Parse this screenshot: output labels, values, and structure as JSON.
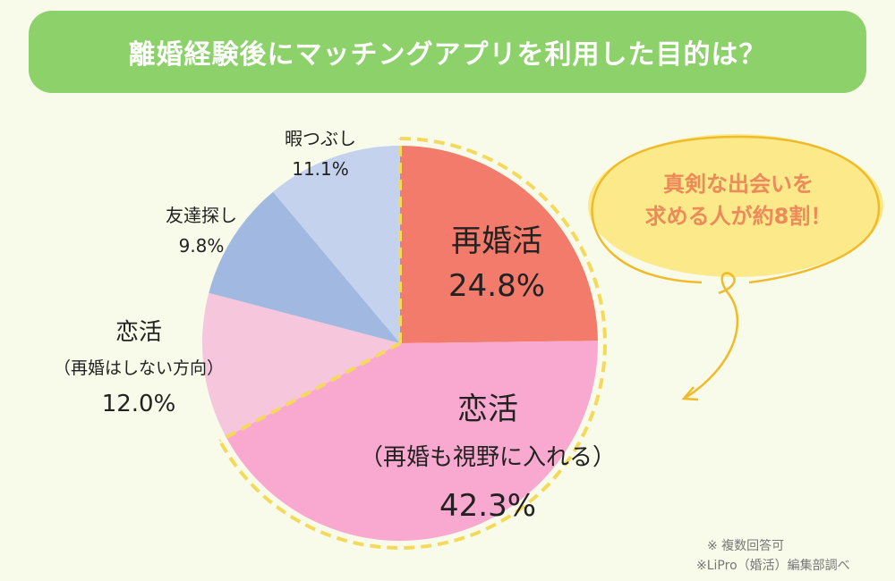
{
  "title": "離婚経験後にマッチングアプリを利用した目的は？",
  "callout": {
    "line1": "真剣な出会いを",
    "line2": "求める人が約8割！"
  },
  "notes": [
    "※ 複数回答可",
    "※LiPro（婚活）編集部調べ"
  ],
  "colors": {
    "background": "#f8fbe9",
    "title_bar": "#8dd16b",
    "highlight": "#f5d95a",
    "callout_text": "#ec8a5a"
  },
  "chart_data": {
    "type": "pie",
    "start": "top",
    "direction": "clockwise",
    "slices": [
      {
        "label": "再婚活",
        "sublabel": "",
        "value": 24.8,
        "value_label": "24.8%",
        "color": "#f27b6b"
      },
      {
        "label": "恋活",
        "sublabel": "（再婚も視野に入れる）",
        "value": 42.3,
        "value_label": "42.3%",
        "color": "#f9a9cf"
      },
      {
        "label": "恋活",
        "sublabel": "（再婚はしない方向）",
        "value": 12.0,
        "value_label": "12.0%",
        "color": "#f6c6dd"
      },
      {
        "label": "友達探し",
        "sublabel": "",
        "value": 9.8,
        "value_label": "9.8%",
        "color": "#a1b8e0"
      },
      {
        "label": "暇つぶし",
        "sublabel": "",
        "value": 11.1,
        "value_label": "11.1%",
        "color": "#c4d2ed"
      }
    ],
    "highlighted_slices": [
      "再婚活",
      "恋活（再婚も視野に入れる）"
    ]
  }
}
